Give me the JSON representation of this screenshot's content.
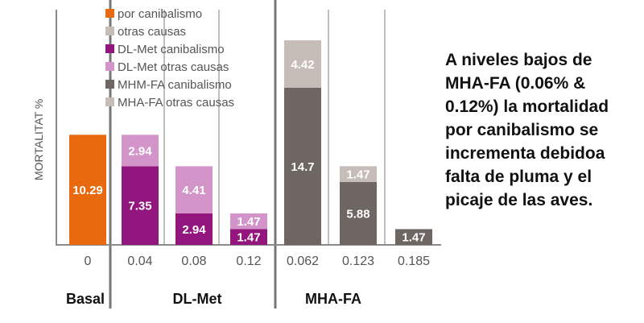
{
  "chart_data": {
    "type": "bar",
    "stacked": true,
    "ylabel": "MORTALITAT %",
    "legend_placement": "top-left",
    "legend": [
      {
        "label": "por canibalismo",
        "color": "#e8690e"
      },
      {
        "label": "otras causas",
        "color": "#c6bdb8"
      },
      {
        "label": "DL-Met canibalismo",
        "color": "#93167e"
      },
      {
        "label": "DL-Met otras causas",
        "color": "#d294c9"
      },
      {
        "label": "MHM-FA canibalismo",
        "color": "#6e6662"
      },
      {
        "label": "MHA-FA otras causas",
        "color": "#c6bdb8"
      }
    ],
    "categories": [
      "0",
      "0.04",
      "0.08",
      "0.12",
      "0.062",
      "0.123",
      "0.185"
    ],
    "groups": [
      {
        "label": "Basal",
        "categories": [
          "0"
        ]
      },
      {
        "label": "DL-Met",
        "categories": [
          "0.04",
          "0.08",
          "0.12"
        ]
      },
      {
        "label": "MHA-FA",
        "categories": [
          "0.062",
          "0.123",
          "0.185"
        ]
      }
    ],
    "bars": [
      {
        "category": "0",
        "segments": [
          {
            "value": 10.29,
            "label": "10.29",
            "color": "#e8690e"
          }
        ]
      },
      {
        "category": "0.04",
        "segments": [
          {
            "value": 7.35,
            "label": "7.35",
            "color": "#93167e"
          },
          {
            "value": 2.94,
            "label": "2.94",
            "color": "#d294c9"
          }
        ]
      },
      {
        "category": "0.08",
        "segments": [
          {
            "value": 2.94,
            "label": "2.94",
            "color": "#93167e"
          },
          {
            "value": 4.41,
            "label": "4.41",
            "color": "#d294c9"
          }
        ]
      },
      {
        "category": "0.12",
        "segments": [
          {
            "value": 1.47,
            "label": "1.47",
            "color": "#93167e"
          },
          {
            "value": 1.47,
            "label": "1.47",
            "color": "#d294c9"
          }
        ]
      },
      {
        "category": "0.062",
        "segments": [
          {
            "value": 14.7,
            "label": "14.7",
            "color": "#6e6662"
          },
          {
            "value": 4.42,
            "label": "4.42",
            "color": "#c6bdb8"
          }
        ]
      },
      {
        "category": "0.123",
        "segments": [
          {
            "value": 5.88,
            "label": "5.88",
            "color": "#6e6662"
          },
          {
            "value": 1.47,
            "label": "1.47",
            "color": "#c6bdb8"
          }
        ]
      },
      {
        "category": "0.185",
        "segments": [
          {
            "value": 1.47,
            "label": "1.47",
            "color": "#6e6662"
          }
        ]
      }
    ],
    "ylim": [
      0,
      19.2
    ]
  },
  "note": {
    "lines": [
      "A niveles bajos de",
      "MHA-FA (0.06% &",
      "0.12%) la mortalidad",
      "por canibalismo se",
      "incrementa debidoa",
      "falta de pluma y el",
      "picaje de las aves."
    ]
  }
}
